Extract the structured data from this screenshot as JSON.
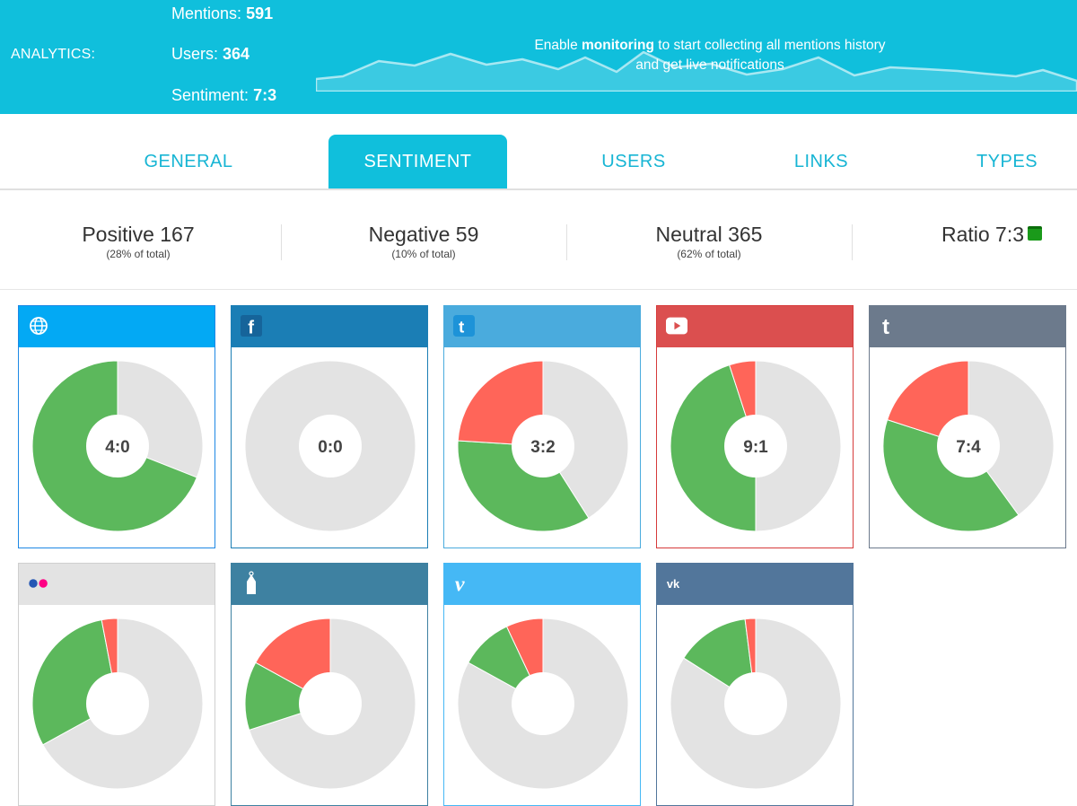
{
  "banner": {
    "label": "ANALYTICS:",
    "mentions_label": "Mentions:",
    "mentions_value": "591",
    "users_label": "Users:",
    "users_value": "364",
    "sentiment_label": "Sentiment:",
    "sentiment_value": "7:3",
    "cta_before": "Enable",
    "cta_bold": "monitoring",
    "cta_after": "to start collecting all mentions history and get live notifications"
  },
  "tabs": [
    {
      "label": "GENERAL",
      "active": false
    },
    {
      "label": "SENTIMENT",
      "active": true
    },
    {
      "label": "USERS",
      "active": false
    },
    {
      "label": "LINKS",
      "active": false
    },
    {
      "label": "TYPES",
      "active": false
    }
  ],
  "summary": {
    "positive": {
      "title": "Positive 167",
      "sub": "(28% of total)"
    },
    "negative": {
      "title": "Negative 59",
      "sub": "(10% of total)"
    },
    "neutral": {
      "title": "Neutral 365",
      "sub": "(62% of total)"
    },
    "ratio": {
      "title": "Ratio 7:3"
    }
  },
  "colors": {
    "banner": "#10bfdc",
    "positive": "#5cb85c",
    "negative": "#ff6559",
    "neutral": "#e3e3e3"
  },
  "sources": [
    {
      "name": "web",
      "icon": "globe-icon",
      "header_color": "#03a9f4",
      "border": "#1e88e5",
      "ratio": "4:0",
      "positive": 0.69,
      "negative": 0.0
    },
    {
      "name": "facebook",
      "icon": "facebook-icon",
      "header_color": "#1b7eb5",
      "border": "#1b7eb5",
      "ratio": "0:0",
      "positive": 0.0,
      "negative": 0.0
    },
    {
      "name": "twitter",
      "icon": "twitter-icon",
      "header_color": "#4aabdd",
      "border": "#4aabdd",
      "ratio": "3:2",
      "positive": 0.35,
      "negative": 0.24
    },
    {
      "name": "youtube",
      "icon": "youtube-icon",
      "header_color": "#db4f4f",
      "border": "#d63b3b",
      "ratio": "9:1",
      "positive": 0.45,
      "negative": 0.05
    },
    {
      "name": "tumblr",
      "icon": "tumblr-icon",
      "header_color": "#6c7a8c",
      "border": "#6c7a8c",
      "ratio": "7:4",
      "positive": 0.4,
      "negative": 0.2
    },
    {
      "name": "flickr",
      "icon": "flickr-icon",
      "header_color": "#e3e3e3",
      "border": "#cfcfcf",
      "positive": 0.3,
      "negative": 0.03
    },
    {
      "name": "forum",
      "icon": "forum-icon",
      "header_color": "#3e81a1",
      "border": "#3e81a1",
      "positive": 0.13,
      "negative": 0.17
    },
    {
      "name": "vimeo",
      "icon": "vimeo-icon",
      "header_color": "#45b8f5",
      "border": "#45b8f5",
      "positive": 0.1,
      "negative": 0.07
    },
    {
      "name": "vk",
      "icon": "vk-icon",
      "header_color": "#52769b",
      "border": "#52769b",
      "positive": 0.14,
      "negative": 0.02
    }
  ]
}
